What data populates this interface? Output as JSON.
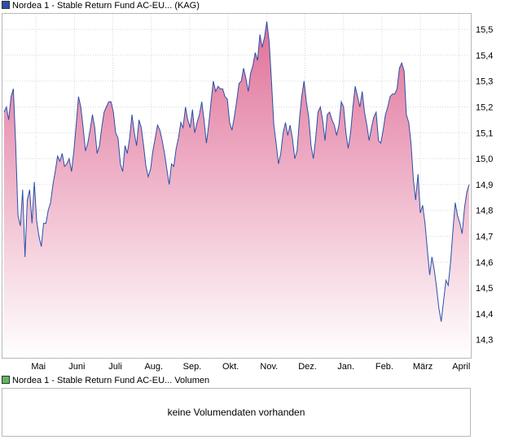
{
  "legend": {
    "price_label": "Nordea 1 - Stable Return Fund AC-EU... (KAG)",
    "price_color": "#2a4fa8",
    "volume_label": "Nordea 1 - Stable Return Fund AC-EU... Volumen",
    "volume_color": "#5cb85c"
  },
  "volume": {
    "message": "keine Volumendaten vorhanden"
  },
  "colors": {
    "line": "#2a4fa8",
    "fill_top": "#e07098",
    "fill_bottom": "#ffffff",
    "grid": "#d8d8d8",
    "frame": "#b8b8b8"
  },
  "chart_data": {
    "type": "area",
    "title": "",
    "xlabel": "",
    "ylabel": "",
    "x_ticks": [
      "Mai",
      "Juni",
      "Juli",
      "Aug.",
      "Sep.",
      "Okt.",
      "Nov.",
      "Dez.",
      "Jan.",
      "Feb.",
      "März",
      "April"
    ],
    "y_ticks": [
      "14,3",
      "14,4",
      "14,5",
      "14,6",
      "14,7",
      "14,8",
      "14,9",
      "15,0",
      "15,1",
      "15,2",
      "15,3",
      "15,4",
      "15,5"
    ],
    "ylim": [
      14.23,
      15.56
    ],
    "grid": true,
    "series": [
      {
        "name": "Nordea 1 - Stable Return Fund AC-EU... (KAG)",
        "values": [
          15.18,
          15.2,
          15.15,
          15.24,
          15.27,
          15.05,
          14.78,
          14.74,
          14.88,
          14.62,
          14.84,
          14.88,
          14.75,
          14.91,
          14.76,
          14.7,
          14.66,
          14.75,
          14.75,
          14.8,
          14.83,
          14.9,
          14.95,
          15.01,
          14.99,
          15.02,
          14.97,
          14.98,
          15.0,
          14.95,
          15.03,
          15.13,
          15.24,
          15.2,
          15.12,
          15.03,
          15.06,
          15.11,
          15.17,
          15.12,
          15.02,
          15.05,
          15.12,
          15.18,
          15.2,
          15.22,
          15.22,
          15.18,
          15.1,
          15.08,
          14.98,
          14.95,
          15.05,
          15.02,
          15.08,
          15.17,
          15.1,
          15.05,
          15.15,
          15.12,
          15.05,
          14.97,
          14.93,
          14.96,
          15.03,
          15.08,
          15.13,
          15.11,
          15.07,
          15.02,
          14.96,
          14.9,
          14.98,
          14.97,
          15.04,
          15.08,
          15.14,
          15.12,
          15.2,
          15.15,
          15.12,
          15.19,
          15.1,
          15.14,
          15.17,
          15.22,
          15.15,
          15.06,
          15.13,
          15.22,
          15.3,
          15.26,
          15.28,
          15.27,
          15.27,
          15.24,
          15.23,
          15.14,
          15.11,
          15.16,
          15.22,
          15.29,
          15.3,
          15.35,
          15.31,
          15.26,
          15.33,
          15.36,
          15.41,
          15.38,
          15.48,
          15.43,
          15.47,
          15.53,
          15.45,
          15.3,
          15.13,
          15.06,
          14.98,
          15.02,
          15.1,
          15.14,
          15.09,
          15.13,
          15.08,
          15.0,
          15.03,
          15.15,
          15.24,
          15.3,
          15.22,
          15.16,
          15.05,
          15.0,
          15.08,
          15.18,
          15.2,
          15.15,
          15.07,
          15.17,
          15.18,
          15.15,
          15.13,
          15.09,
          15.13,
          15.22,
          15.2,
          15.1,
          15.04,
          15.1,
          15.2,
          15.28,
          15.24,
          15.2,
          15.26,
          15.18,
          15.13,
          15.07,
          15.12,
          15.16,
          15.18,
          15.07,
          15.06,
          15.11,
          15.17,
          15.2,
          15.24,
          15.25,
          15.25,
          15.27,
          15.35,
          15.37,
          15.34,
          15.17,
          15.14,
          15.06,
          14.92,
          14.84,
          14.94,
          14.79,
          14.82,
          14.75,
          14.65,
          14.55,
          14.62,
          14.57,
          14.5,
          14.42,
          14.37,
          14.45,
          14.53,
          14.51,
          14.6,
          14.72,
          14.83,
          14.78,
          14.75,
          14.71,
          14.81,
          14.87,
          14.9
        ]
      }
    ]
  }
}
